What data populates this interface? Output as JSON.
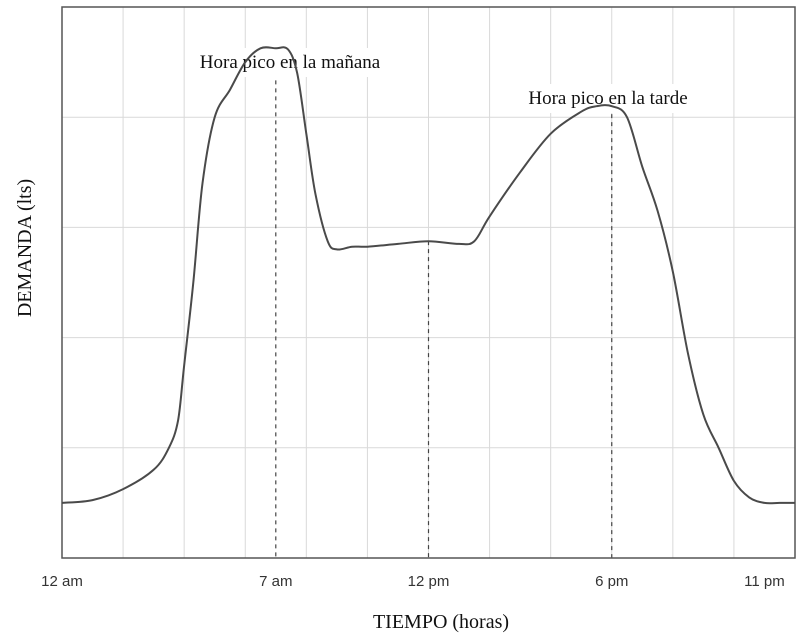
{
  "chart_data": {
    "type": "line",
    "title": "",
    "xlabel": "TIEMPO (horas)",
    "ylabel": "DEMANDA  (lts)",
    "x_ticks": [
      {
        "hour": 0,
        "label": "12 am"
      },
      {
        "hour": 7,
        "label": "7 am"
      },
      {
        "hour": 12,
        "label": "12 pm"
      },
      {
        "hour": 18,
        "label": "6 pm"
      },
      {
        "hour": 23,
        "label": "11 pm"
      }
    ],
    "xlim": [
      0,
      24
    ],
    "ylim": [
      0,
      100
    ],
    "grid": true,
    "series": [
      {
        "x": [
          0,
          1,
          2,
          3,
          3.5,
          3.8,
          4.0,
          4.3,
          4.6,
          5.0,
          5.5,
          6.0,
          6.5,
          7.0,
          7.4,
          7.7,
          8.0,
          8.3,
          8.7,
          9.0,
          9.5,
          10,
          11,
          12,
          13,
          13.5,
          14,
          15,
          16,
          17,
          17.5,
          18,
          18.5,
          19,
          19.5,
          20,
          20.5,
          21,
          21.5,
          22,
          22.5,
          23,
          23.5,
          24
        ],
        "y": [
          10,
          10.5,
          12.5,
          16,
          20,
          25,
          35,
          50,
          68,
          80,
          85,
          90,
          92.5,
          92.5,
          92.3,
          88,
          77,
          66,
          57.5,
          56,
          56.5,
          56.5,
          57,
          57.5,
          57,
          57.5,
          62,
          70,
          77,
          81,
          82,
          82,
          80,
          71,
          63,
          52,
          37,
          26,
          20,
          14,
          11,
          10,
          10,
          10
        ]
      }
    ],
    "reference_lines": [
      {
        "hour": 7,
        "annotation": "Hora pico en la mañana"
      },
      {
        "hour": 12,
        "annotation": ""
      },
      {
        "hour": 18,
        "annotation": "Hora pico en la tarde"
      }
    ]
  }
}
